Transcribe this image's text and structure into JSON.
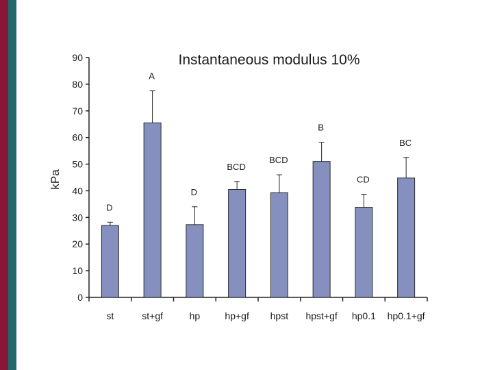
{
  "colors": {
    "bar": "#8590bf",
    "axis": "#222222",
    "stripe_left": "#8b1538",
    "stripe_right": "#1e6a6a"
  },
  "chart_data": {
    "type": "bar",
    "title": "Instantaneous modulus 10%",
    "xlabel": "",
    "ylabel": "kPa",
    "ylim": [
      0,
      90
    ],
    "yticks": [
      0,
      10,
      20,
      30,
      40,
      50,
      60,
      70,
      80,
      90
    ],
    "categories": [
      "st",
      "st+gf",
      "hp",
      "hp+gf",
      "hpst",
      "hpst+gf",
      "hp0.1",
      "hp0.1+gf"
    ],
    "values": [
      27,
      65.5,
      27.3,
      40.5,
      39.3,
      51,
      33.8,
      44.8
    ],
    "error_upper": [
      28.2,
      77.5,
      34,
      43.5,
      46,
      58.2,
      38.7,
      52.5
    ],
    "significance_labels": [
      "D",
      "A",
      "D",
      "BCD",
      "BCD",
      "B",
      "CD",
      "BC"
    ],
    "grid": false,
    "legend": "none"
  }
}
